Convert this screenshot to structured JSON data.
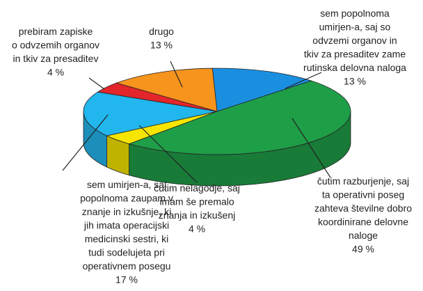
{
  "chart_data": {
    "type": "pie",
    "categories": [
      "sem popolnoma\numirjen-a, saj so\nodvzemi organov in\ntkiv za presaditev zame\nrutinska delovna naloga",
      "čutim razburjenje, saj\nta operativni poseg\nzahteva številne dobro\nkoordinirane delovne\nnaloge",
      "čutim nelagodje, saj\nimam še premalo\nznanja in izkušenj",
      "sem umirjen-a, saj\npopolnoma zaupam v\nznanje in izkušnje, ki\njih imata operacijski\nmedicinski sestri, ki\ntudi sodelujeta pri\noperativnem posegu",
      "prebiram zapiske\no odvzemih organov\nin tkiv za presaditev",
      "drugo"
    ],
    "values": [
      13,
      49,
      4,
      17,
      4,
      13
    ],
    "value_labels": [
      "13 %",
      "49 %",
      "4 %",
      "17 %",
      "4 %",
      "13 %"
    ],
    "colors": [
      "#1a8fe0",
      "#1f9e48",
      "#f6e500",
      "#22b6ee",
      "#e3262b",
      "#f7941d"
    ]
  }
}
